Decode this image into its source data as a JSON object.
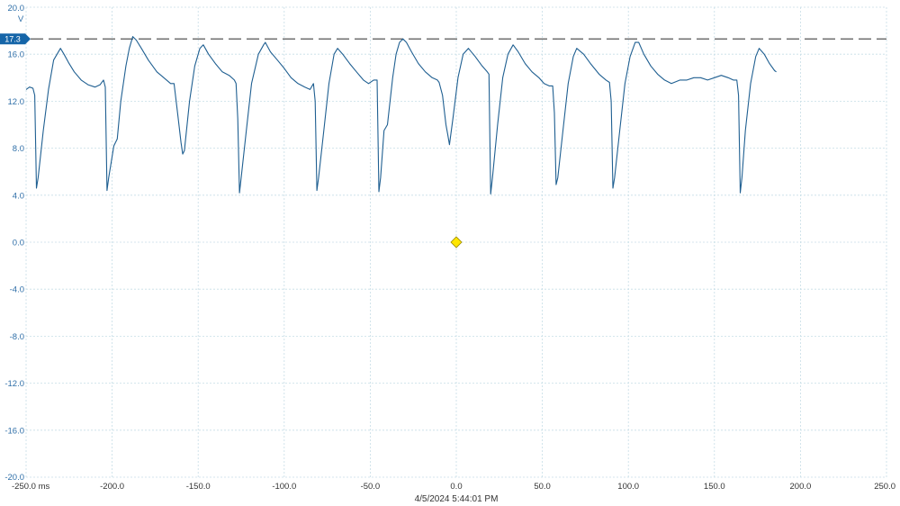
{
  "chart_data": {
    "type": "line",
    "xlim": [
      -250,
      250
    ],
    "ylim": [
      -20,
      20
    ],
    "y_unit": "V",
    "x_unit": "ms",
    "grid": true,
    "x_ticks": [
      "-250.0 ms",
      "-200.0",
      "-150.0",
      "-100.0",
      "-50.0",
      "0.0",
      "50.0",
      "100.0",
      "150.0",
      "200.0",
      "250.0"
    ],
    "x_tick_values": [
      -250,
      -200,
      -150,
      -100,
      -50,
      0,
      50,
      100,
      150,
      200,
      250
    ],
    "y_ticks": [
      "20.0",
      "16.0",
      "12.0",
      "8.0",
      "4.0",
      "0.0",
      "-4.0",
      "-8.0",
      "-12.0",
      "-16.0",
      "-20.0"
    ],
    "y_tick_values": [
      20,
      16,
      12,
      8,
      4,
      0,
      -4,
      -8,
      -12,
      -16,
      -20
    ],
    "reference_level": {
      "value": 17.3,
      "label": "17.3"
    },
    "trigger": {
      "x": 0,
      "y": 0
    },
    "timestamp": "4/5/2024 5:44:01 PM",
    "colors": {
      "trace": "#1f5f91",
      "accent": "#1565a8",
      "grid": "#c6dde6",
      "trigger": "#ffe600",
      "reference": "#555555"
    },
    "series": [
      {
        "values": [
          [
            -250,
            13.0
          ],
          [
            -248,
            13.2
          ],
          [
            -246,
            13.1
          ],
          [
            -245,
            12.5
          ],
          [
            -244,
            4.6
          ],
          [
            -243,
            5.5
          ],
          [
            -240,
            9.5
          ],
          [
            -237,
            13.0
          ],
          [
            -234,
            15.5
          ],
          [
            -232,
            16.0
          ],
          [
            -230,
            16.5
          ],
          [
            -228,
            16.0
          ],
          [
            -225,
            15.2
          ],
          [
            -222,
            14.5
          ],
          [
            -218,
            13.8
          ],
          [
            -214,
            13.4
          ],
          [
            -210,
            13.2
          ],
          [
            -207,
            13.4
          ],
          [
            -205,
            13.8
          ],
          [
            -204,
            13.2
          ],
          [
            -203,
            4.4
          ],
          [
            -202,
            5.5
          ],
          [
            -199,
            8.2
          ],
          [
            -197,
            8.8
          ],
          [
            -195,
            12.0
          ],
          [
            -192,
            15.0
          ],
          [
            -190,
            16.5
          ],
          [
            -188,
            17.5
          ],
          [
            -186,
            17.2
          ],
          [
            -183,
            16.5
          ],
          [
            -179,
            15.5
          ],
          [
            -174,
            14.5
          ],
          [
            -170,
            14.0
          ],
          [
            -166,
            13.5
          ],
          [
            -164,
            13.5
          ],
          [
            -162,
            11.0
          ],
          [
            -160,
            8.5
          ],
          [
            -159,
            7.5
          ],
          [
            -158,
            7.8
          ],
          [
            -155,
            12.0
          ],
          [
            -152,
            15.0
          ],
          [
            -149,
            16.5
          ],
          [
            -147,
            16.8
          ],
          [
            -144,
            16.0
          ],
          [
            -140,
            15.2
          ],
          [
            -136,
            14.5
          ],
          [
            -132,
            14.2
          ],
          [
            -129,
            13.8
          ],
          [
            -128,
            13.5
          ],
          [
            -127,
            10.5
          ],
          [
            -126,
            4.2
          ],
          [
            -125,
            5.5
          ],
          [
            -122,
            9.5
          ],
          [
            -119,
            13.5
          ],
          [
            -115,
            16.0
          ],
          [
            -112,
            16.8
          ],
          [
            -111,
            17.0
          ],
          [
            -108,
            16.2
          ],
          [
            -104,
            15.5
          ],
          [
            -100,
            14.8
          ],
          [
            -96,
            14.0
          ],
          [
            -92,
            13.5
          ],
          [
            -88,
            13.2
          ],
          [
            -85,
            13.0
          ],
          [
            -83,
            13.5
          ],
          [
            -82,
            12.0
          ],
          [
            -81,
            4.4
          ],
          [
            -80,
            5.5
          ],
          [
            -77,
            9.5
          ],
          [
            -74,
            13.5
          ],
          [
            -71,
            16.0
          ],
          [
            -69,
            16.5
          ],
          [
            -66,
            16.0
          ],
          [
            -62,
            15.2
          ],
          [
            -58,
            14.5
          ],
          [
            -54,
            13.8
          ],
          [
            -51,
            13.5
          ],
          [
            -48,
            13.8
          ],
          [
            -46,
            13.8
          ],
          [
            -45,
            4.3
          ],
          [
            -44,
            5.5
          ],
          [
            -42,
            9.5
          ],
          [
            -40,
            10.0
          ],
          [
            -37,
            14.0
          ],
          [
            -35,
            16.0
          ],
          [
            -33,
            17.0
          ],
          [
            -31,
            17.3
          ],
          [
            -29,
            17.0
          ],
          [
            -26,
            16.2
          ],
          [
            -22,
            15.2
          ],
          [
            -18,
            14.5
          ],
          [
            -14,
            14.0
          ],
          [
            -11,
            13.8
          ],
          [
            -10,
            13.6
          ],
          [
            -8,
            12.5
          ],
          [
            -6,
            10.0
          ],
          [
            -5,
            9.2
          ],
          [
            -4,
            8.3
          ],
          [
            -2,
            10.5
          ],
          [
            1,
            14.0
          ],
          [
            4,
            16.0
          ],
          [
            7,
            16.5
          ],
          [
            11,
            15.8
          ],
          [
            15,
            15.0
          ],
          [
            18,
            14.5
          ],
          [
            19,
            14.3
          ],
          [
            20,
            4.1
          ],
          [
            21,
            5.5
          ],
          [
            24,
            10.0
          ],
          [
            27,
            14.0
          ],
          [
            30,
            16.0
          ],
          [
            33,
            16.8
          ],
          [
            36,
            16.2
          ],
          [
            40,
            15.2
          ],
          [
            44,
            14.5
          ],
          [
            48,
            14.0
          ],
          [
            51,
            13.5
          ],
          [
            54,
            13.3
          ],
          [
            56,
            13.3
          ],
          [
            57,
            11.0
          ],
          [
            58,
            4.9
          ],
          [
            59,
            5.5
          ],
          [
            62,
            9.5
          ],
          [
            65,
            13.5
          ],
          [
            68,
            15.8
          ],
          [
            70,
            16.5
          ],
          [
            74,
            16.0
          ],
          [
            78,
            15.2
          ],
          [
            83,
            14.3
          ],
          [
            87,
            13.8
          ],
          [
            89,
            13.6
          ],
          [
            90,
            12.0
          ],
          [
            91,
            4.6
          ],
          [
            92,
            5.5
          ],
          [
            95,
            9.5
          ],
          [
            98,
            13.5
          ],
          [
            101,
            15.8
          ],
          [
            104,
            17.0
          ],
          [
            106,
            17.0
          ],
          [
            109,
            16.0
          ],
          [
            113,
            15.0
          ],
          [
            117,
            14.3
          ],
          [
            121,
            13.8
          ],
          [
            125,
            13.5
          ],
          [
            130,
            13.8
          ],
          [
            134,
            13.8
          ],
          [
            138,
            14.0
          ],
          [
            142,
            14.0
          ],
          [
            146,
            13.8
          ],
          [
            150,
            14.0
          ],
          [
            154,
            14.2
          ],
          [
            158,
            14.0
          ],
          [
            161,
            13.8
          ],
          [
            163,
            13.8
          ],
          [
            164,
            12.5
          ],
          [
            165,
            4.2
          ],
          [
            166,
            5.5
          ],
          [
            168,
            9.5
          ],
          [
            171,
            13.5
          ],
          [
            174,
            15.8
          ],
          [
            176,
            16.5
          ],
          [
            179,
            16.0
          ],
          [
            182,
            15.2
          ],
          [
            185,
            14.6
          ],
          [
            186,
            14.5
          ]
        ]
      }
    ]
  }
}
